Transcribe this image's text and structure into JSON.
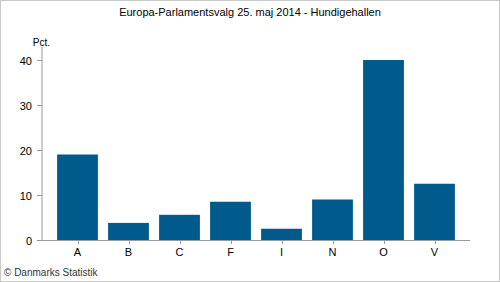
{
  "chart_data": {
    "type": "bar",
    "title": "Europa-Parlamentsvalg 25. maj 2014 - Hundigehallen",
    "y_label": "Pct.",
    "annotations": [
      "© Danmarks Statistik"
    ],
    "categories": [
      "A",
      "B",
      "C",
      "F",
      "I",
      "N",
      "O",
      "V"
    ],
    "values": [
      19,
      3.8,
      5.6,
      8.5,
      2.5,
      9,
      40,
      12.5
    ],
    "color": "#005a8c",
    "ylim": [
      0,
      43
    ],
    "yticks": [
      0,
      10,
      20,
      30,
      40
    ],
    "grid": false
  }
}
